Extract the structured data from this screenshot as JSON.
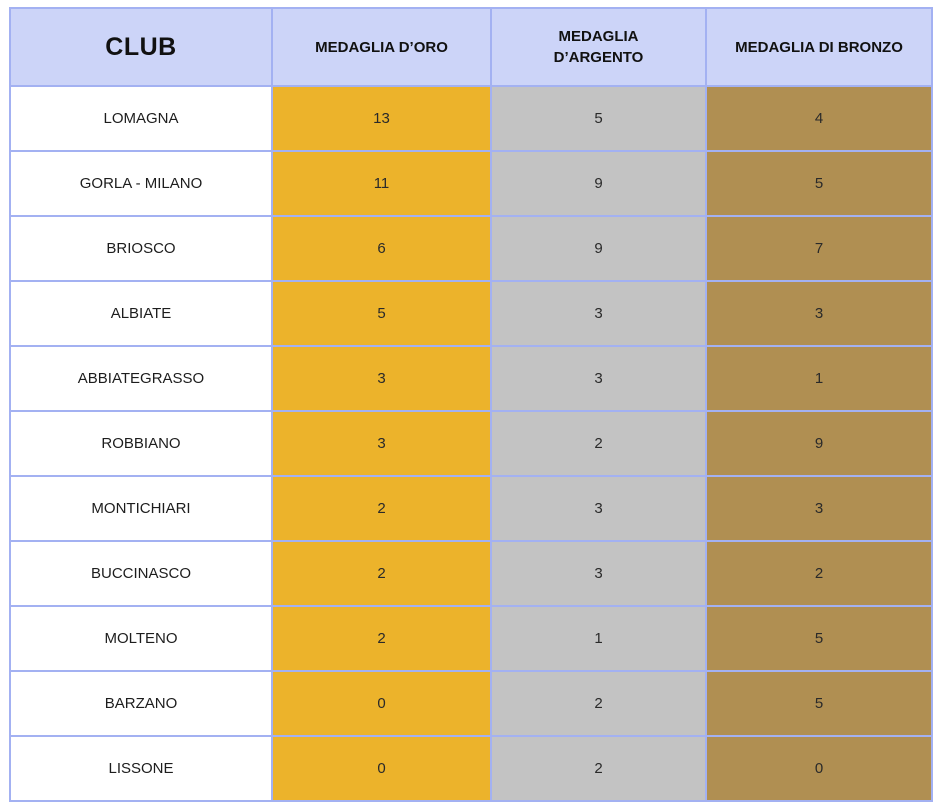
{
  "chart_data": {
    "type": "table",
    "title": "",
    "columns": [
      "CLUB",
      "MEDAGLIA D’ORO",
      "MEDAGLIA D’ARGENTO",
      "MEDAGLIA DI BRONZO"
    ],
    "rows": [
      [
        "LOMAGNA",
        13,
        5,
        4
      ],
      [
        "GORLA - MILANO",
        11,
        9,
        5
      ],
      [
        "BRIOSCO",
        6,
        9,
        7
      ],
      [
        "ALBIATE",
        5,
        3,
        3
      ],
      [
        "ABBIATEGRASSO",
        3,
        3,
        1
      ],
      [
        "ROBBIANO",
        3,
        2,
        9
      ],
      [
        "MONTICHIARI",
        2,
        3,
        3
      ],
      [
        "BUCCINASCO",
        2,
        3,
        2
      ],
      [
        "MOLTENO",
        2,
        1,
        5
      ],
      [
        "BARZANO",
        0,
        2,
        5
      ],
      [
        "LISSONE",
        0,
        2,
        0
      ]
    ],
    "series": [
      {
        "name": "MEDAGLIA D’ORO",
        "values": [
          13,
          11,
          6,
          5,
          3,
          3,
          2,
          2,
          2,
          0,
          0
        ]
      },
      {
        "name": "MEDAGLIA D’ARGENTO",
        "values": [
          5,
          9,
          9,
          3,
          3,
          2,
          3,
          3,
          1,
          2,
          2
        ]
      },
      {
        "name": "MEDAGLIA DI BRONZO",
        "values": [
          4,
          5,
          7,
          3,
          1,
          9,
          3,
          2,
          5,
          5,
          0
        ]
      }
    ],
    "categories": [
      "LOMAGNA",
      "GORLA - MILANO",
      "BRIOSCO",
      "ALBIATE",
      "ABBIATEGRASSO",
      "ROBBIANO",
      "MONTICHIARI",
      "BUCCINASCO",
      "MOLTENO",
      "BARZANO",
      "LISSONE"
    ]
  },
  "colors": {
    "header_background": "#ccd4f8",
    "grid_border": "#a3b1f2",
    "gold_cell": "#ecb32b",
    "silver_cell": "#c3c3c3",
    "bronze_cell": "#b08f52",
    "text": "#1d1d1d"
  }
}
